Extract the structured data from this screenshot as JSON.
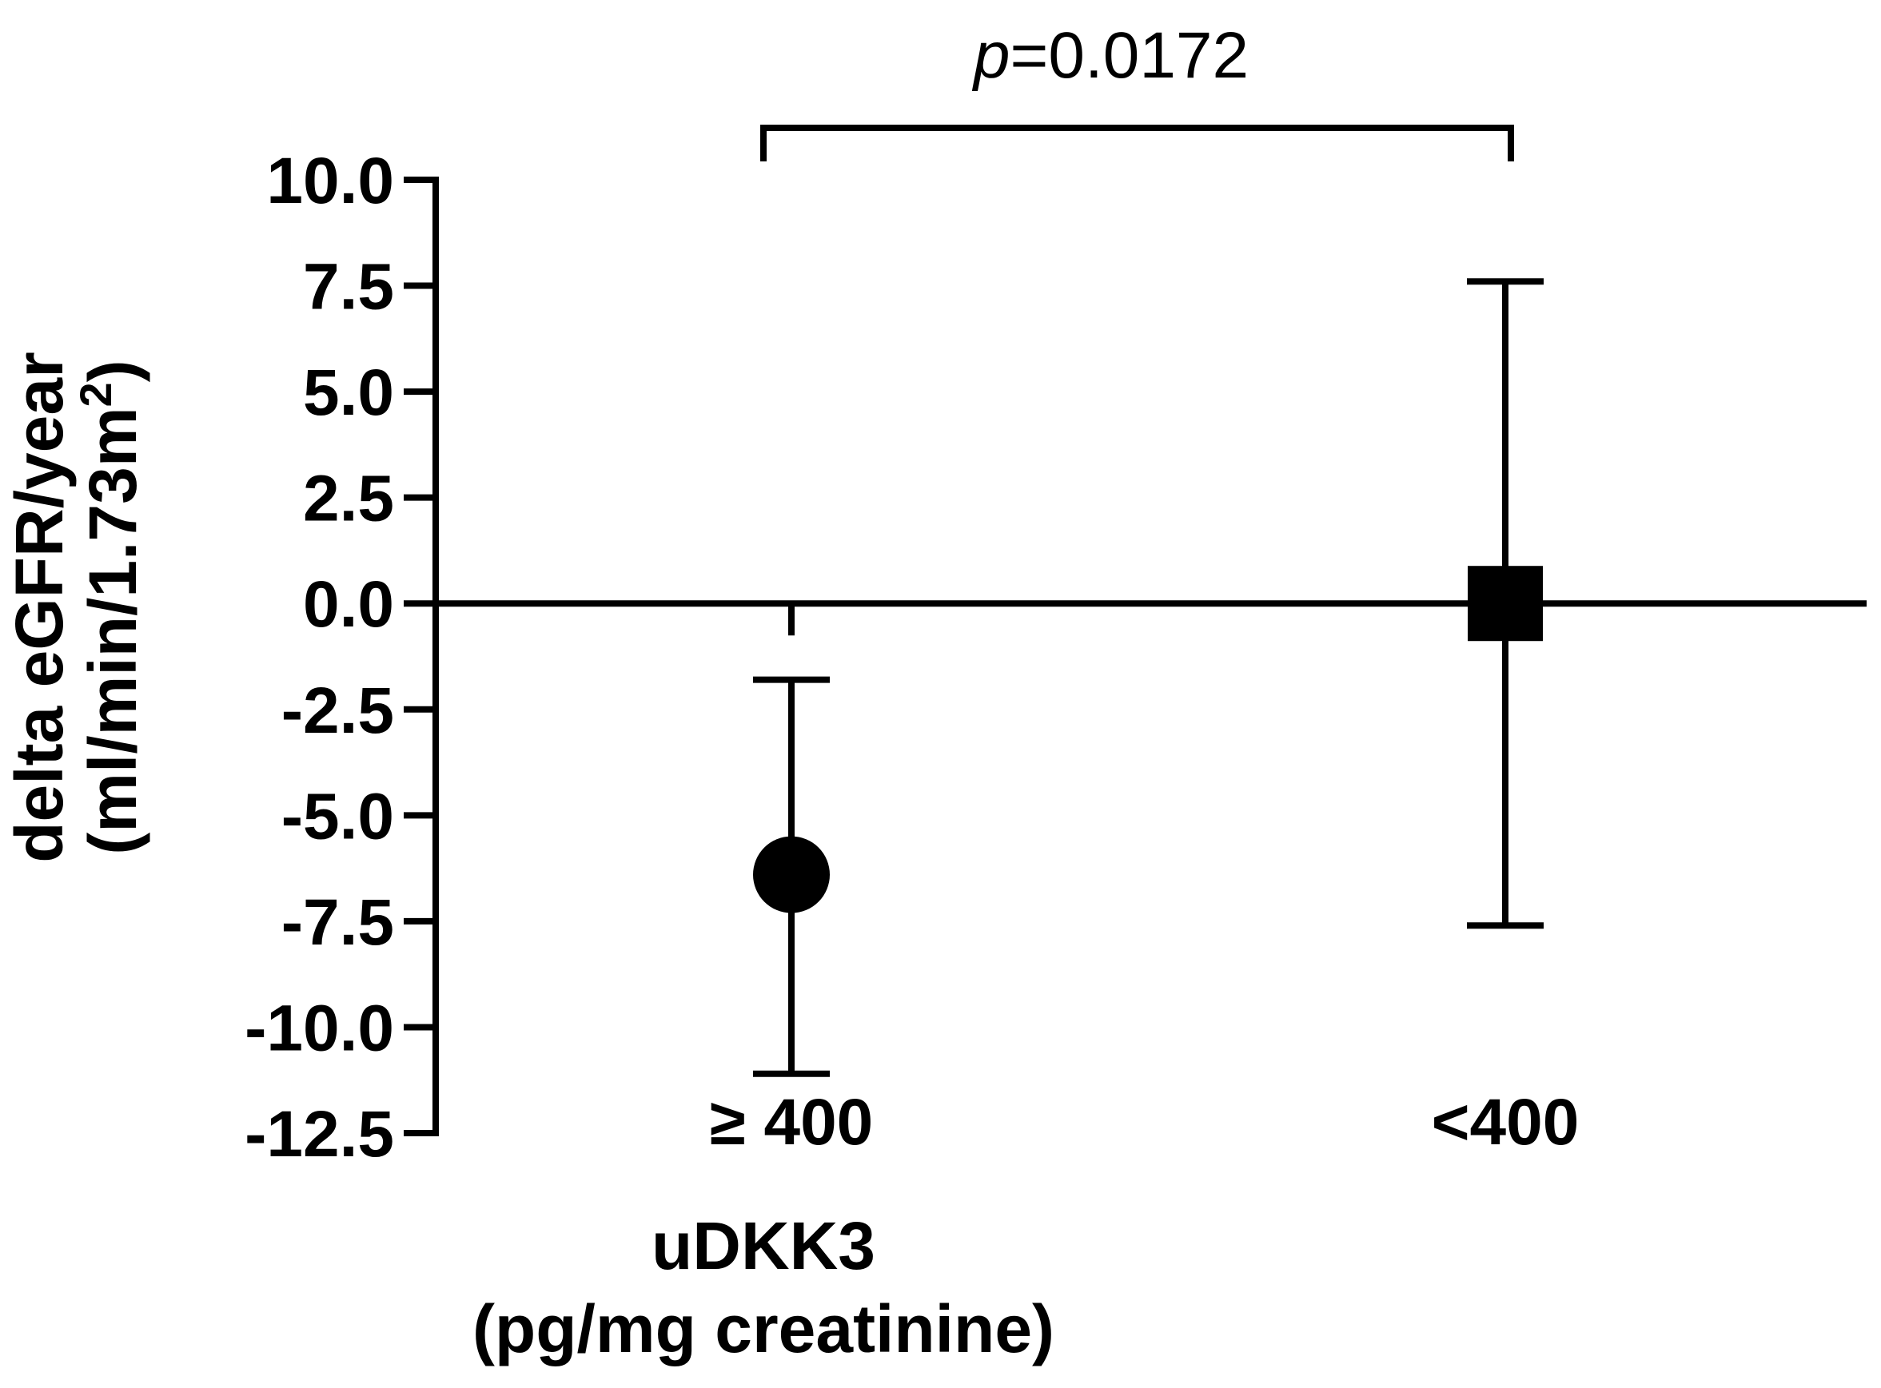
{
  "chart_data": {
    "type": "scatter",
    "ylabel_line1": "delta eGFR/year",
    "ylabel_line2_prefix": "(ml/min/1.73m",
    "ylabel_line2_sup": "2",
    "ylabel_line2_suffix": ")",
    "xlabel_line1": "uDKK3",
    "xlabel_line2": "(pg/mg creatinine)",
    "ylim": [
      -12.5,
      10.0
    ],
    "yticks": [
      10.0,
      7.5,
      5.0,
      2.5,
      0.0,
      -2.5,
      -5.0,
      -7.5,
      -10.0,
      -12.5
    ],
    "ytick_labels": [
      "10.0",
      "7.5",
      "5.0",
      "2.5",
      "0.0",
      "-2.5",
      "-5.0",
      "-7.5",
      "-10.0",
      "-12.5"
    ],
    "categories": [
      "≥ 400",
      "<400"
    ],
    "points": [
      {
        "category": "≥ 400",
        "mean": -6.4,
        "err_low": -11.1,
        "err_high": -1.8,
        "marker": "circle"
      },
      {
        "category": "<400",
        "mean": 0.0,
        "err_low": -7.6,
        "err_high": 7.6,
        "marker": "square"
      }
    ],
    "significance": {
      "p_italic": "p",
      "p_value": "=0.0172",
      "between": [
        "≥ 400",
        "<400"
      ]
    },
    "grid": false,
    "legend": "none"
  }
}
